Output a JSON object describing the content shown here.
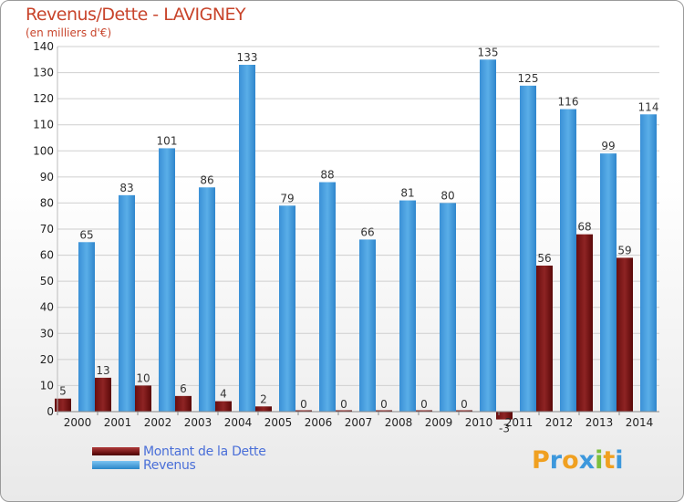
{
  "header": {
    "title": "Revenus/Dette - LAVIGNEY",
    "subtitle": "(en milliers d'€)"
  },
  "colors": {
    "title": "#c8442b",
    "debt": "#7a1616",
    "revenue": "#3d98dc",
    "legend_text": "#4a6fd8",
    "axis_text": "#222222"
  },
  "chart_data": {
    "type": "bar",
    "categories": [
      "2000",
      "2001",
      "2002",
      "2003",
      "2004",
      "2005",
      "2006",
      "2007",
      "2008",
      "2009",
      "2010",
      "2011",
      "2012",
      "2013",
      "2014"
    ],
    "series": [
      {
        "name": "Montant de la Dette",
        "values": [
          5,
          13,
          10,
          6,
          4,
          2,
          0,
          0,
          0,
          0,
          0,
          -3,
          56,
          68,
          59
        ]
      },
      {
        "name": "Revenus",
        "values": [
          65,
          83,
          101,
          86,
          133,
          79,
          88,
          66,
          81,
          80,
          135,
          125,
          116,
          99,
          114
        ]
      }
    ],
    "data_labels": {
      "Montant de la Dette": [
        "5",
        "13",
        "10",
        "6",
        "4",
        "2",
        "0",
        "0",
        "0",
        "0",
        "0",
        "-3",
        "56",
        "68",
        "59"
      ],
      "Revenus": [
        "65",
        "83",
        "101",
        "86",
        "133",
        "79",
        "88",
        "66",
        "81",
        "80",
        "135",
        "125",
        "116",
        "99",
        "114"
      ]
    },
    "yticks": [
      0,
      10,
      20,
      30,
      40,
      50,
      60,
      70,
      80,
      90,
      100,
      110,
      120,
      130,
      140
    ],
    "ylim": [
      0,
      140
    ],
    "grid": true,
    "legend_position": "bottom-left"
  },
  "legend": {
    "items": [
      {
        "label": "Montant de la Dette"
      },
      {
        "label": "Revenus"
      }
    ]
  },
  "logo": {
    "letters": [
      "P",
      "r",
      "o",
      "x",
      "i",
      "t",
      "i"
    ],
    "colors": [
      "#f0a020",
      "#3d98dc",
      "#f0a020",
      "#3d98dc",
      "#7cbf3c",
      "#f0a020",
      "#3d98dc"
    ]
  }
}
